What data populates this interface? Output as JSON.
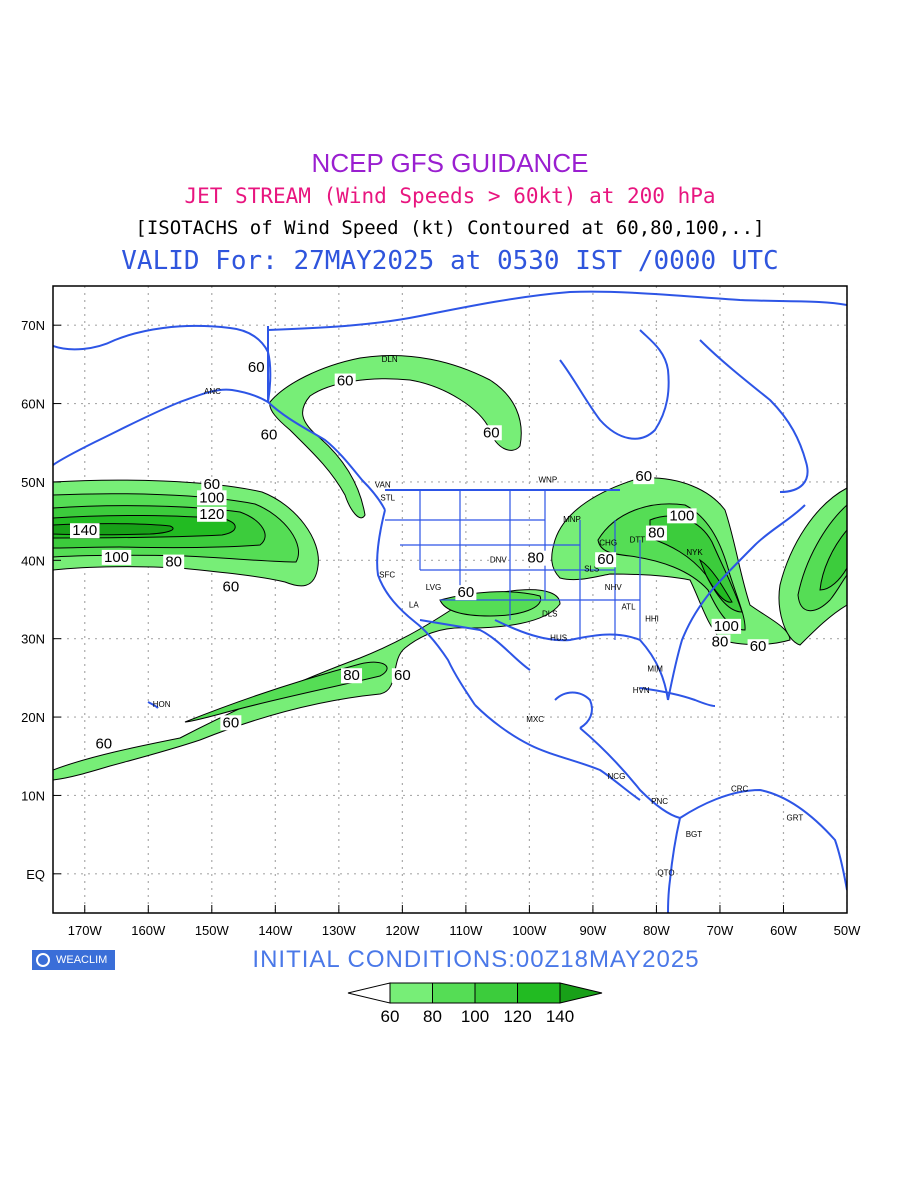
{
  "header": {
    "line1": "NCEP GFS GUIDANCE",
    "line2": "JET STREAM (Wind Speeds > 60kt) at 200 hPa",
    "line3": "[ISOTACHS of Wind Speed (kt) Contoured at 60,80,100,..]",
    "line4": "VALID For: 27MAY2025 at 0530 IST /0000 UTC"
  },
  "footer": {
    "initial_conditions": "INITIAL  CONDITIONS:00Z18MAY2025",
    "badge_text": "WEACLIM"
  },
  "map": {
    "lat_range": [
      -5,
      75
    ],
    "lon_range": [
      -175,
      -50
    ],
    "lat_ticks": [
      {
        "value": 70,
        "label": "70N"
      },
      {
        "value": 60,
        "label": "60N"
      },
      {
        "value": 50,
        "label": "50N"
      },
      {
        "value": 40,
        "label": "40N"
      },
      {
        "value": 30,
        "label": "30N"
      },
      {
        "value": 20,
        "label": "20N"
      },
      {
        "value": 10,
        "label": "10N"
      },
      {
        "value": 0,
        "label": "EQ"
      }
    ],
    "lon_ticks": [
      {
        "value": -170,
        "label": "170W"
      },
      {
        "value": -160,
        "label": "160W"
      },
      {
        "value": -150,
        "label": "150W"
      },
      {
        "value": -140,
        "label": "140W"
      },
      {
        "value": -130,
        "label": "130W"
      },
      {
        "value": -120,
        "label": "120W"
      },
      {
        "value": -110,
        "label": "110W"
      },
      {
        "value": -100,
        "label": "100W"
      },
      {
        "value": -90,
        "label": "90W"
      },
      {
        "value": -80,
        "label": "80W"
      },
      {
        "value": -70,
        "label": "70W"
      },
      {
        "value": -60,
        "label": "60W"
      },
      {
        "value": -50,
        "label": "50W"
      }
    ],
    "stations": [
      {
        "code": "ANC",
        "lon": -149.9,
        "lat": 61.2
      },
      {
        "code": "DLN",
        "lon": -122.0,
        "lat": 65.3
      },
      {
        "code": "VAN",
        "lon": -123.1,
        "lat": 49.3
      },
      {
        "code": "STL",
        "lon": -122.3,
        "lat": 47.6
      },
      {
        "code": "WNP",
        "lon": -97.1,
        "lat": 49.9
      },
      {
        "code": "MNP",
        "lon": -93.3,
        "lat": 44.9
      },
      {
        "code": "DNV",
        "lon": -104.9,
        "lat": 39.7
      },
      {
        "code": "SFC",
        "lon": -122.4,
        "lat": 37.8
      },
      {
        "code": "LVG",
        "lon": -115.1,
        "lat": 36.2
      },
      {
        "code": "LA",
        "lon": -118.2,
        "lat": 34.0
      },
      {
        "code": "CHG",
        "lon": -87.6,
        "lat": 41.9
      },
      {
        "code": "SLS",
        "lon": -90.2,
        "lat": 38.6
      },
      {
        "code": "NHV",
        "lon": -86.8,
        "lat": 36.2
      },
      {
        "code": "DLS",
        "lon": -96.8,
        "lat": 32.8
      },
      {
        "code": "ATL",
        "lon": -84.4,
        "lat": 33.7
      },
      {
        "code": "HUS",
        "lon": -95.4,
        "lat": 29.8
      },
      {
        "code": "HHI",
        "lon": -80.7,
        "lat": 32.2
      },
      {
        "code": "MIM",
        "lon": -80.2,
        "lat": 25.8
      },
      {
        "code": "HVN",
        "lon": -82.4,
        "lat": 23.1
      },
      {
        "code": "HON",
        "lon": -157.9,
        "lat": 21.3
      },
      {
        "code": "MXC",
        "lon": -99.1,
        "lat": 19.4
      },
      {
        "code": "NCG",
        "lon": -86.3,
        "lat": 12.1
      },
      {
        "code": "PNC",
        "lon": -79.5,
        "lat": 8.9
      },
      {
        "code": "CRC",
        "lon": -66.9,
        "lat": 10.5
      },
      {
        "code": "BGT",
        "lon": -74.1,
        "lat": 4.7
      },
      {
        "code": "QTO",
        "lon": -78.5,
        "lat": -0.2
      },
      {
        "code": "GRT",
        "lon": -58.2,
        "lat": 6.8
      },
      {
        "code": "NYK",
        "lon": -74.0,
        "lat": 40.7
      },
      {
        "code": "DTT",
        "lon": -83.0,
        "lat": 42.3
      }
    ],
    "contour_labels": [
      {
        "text": "60",
        "lon": -143,
        "lat": 64.0
      },
      {
        "text": "60",
        "lon": -129,
        "lat": 62.3
      },
      {
        "text": "60",
        "lon": -141,
        "lat": 55.4
      },
      {
        "text": "60",
        "lon": -106,
        "lat": 55.7
      },
      {
        "text": "60",
        "lon": -150,
        "lat": 49.1
      },
      {
        "text": "100",
        "lon": -150,
        "lat": 47.4
      },
      {
        "text": "120",
        "lon": -150,
        "lat": 45.3
      },
      {
        "text": "140",
        "lon": -170,
        "lat": 43.2
      },
      {
        "text": "100",
        "lon": -165,
        "lat": 39.8
      },
      {
        "text": "80",
        "lon": -156,
        "lat": 39.2
      },
      {
        "text": "60",
        "lon": -147,
        "lat": 36.0
      },
      {
        "text": "60",
        "lon": -110,
        "lat": 35.3
      },
      {
        "text": "80",
        "lon": -99,
        "lat": 39.7
      },
      {
        "text": "60",
        "lon": -88,
        "lat": 39.5
      },
      {
        "text": "60",
        "lon": -82,
        "lat": 50.1
      },
      {
        "text": "100",
        "lon": -76,
        "lat": 45.1
      },
      {
        "text": "80",
        "lon": -80,
        "lat": 42.9
      },
      {
        "text": "100",
        "lon": -69,
        "lat": 31.0
      },
      {
        "text": "80",
        "lon": -70,
        "lat": 29.0
      },
      {
        "text": "60",
        "lon": -64,
        "lat": 28.4
      },
      {
        "text": "80",
        "lon": -128,
        "lat": 24.7
      },
      {
        "text": "60",
        "lon": -120,
        "lat": 24.7
      },
      {
        "text": "60",
        "lon": -147,
        "lat": 18.7
      },
      {
        "text": "60",
        "lon": -167,
        "lat": 16.0
      }
    ],
    "colors": {
      "coast": "#2d55e6",
      "grid": "#aaaaaa",
      "c60": "#77ee77",
      "c80": "#55dd55",
      "c100": "#3ccc3c",
      "c120": "#22bb22",
      "c140": "#18a018"
    }
  },
  "legend": {
    "labels": [
      "60",
      "80",
      "100",
      "120",
      "140"
    ],
    "colors": [
      "#ffffff",
      "#77ee77",
      "#55dd55",
      "#3ccc3c",
      "#22bb22",
      "#18a018"
    ]
  }
}
